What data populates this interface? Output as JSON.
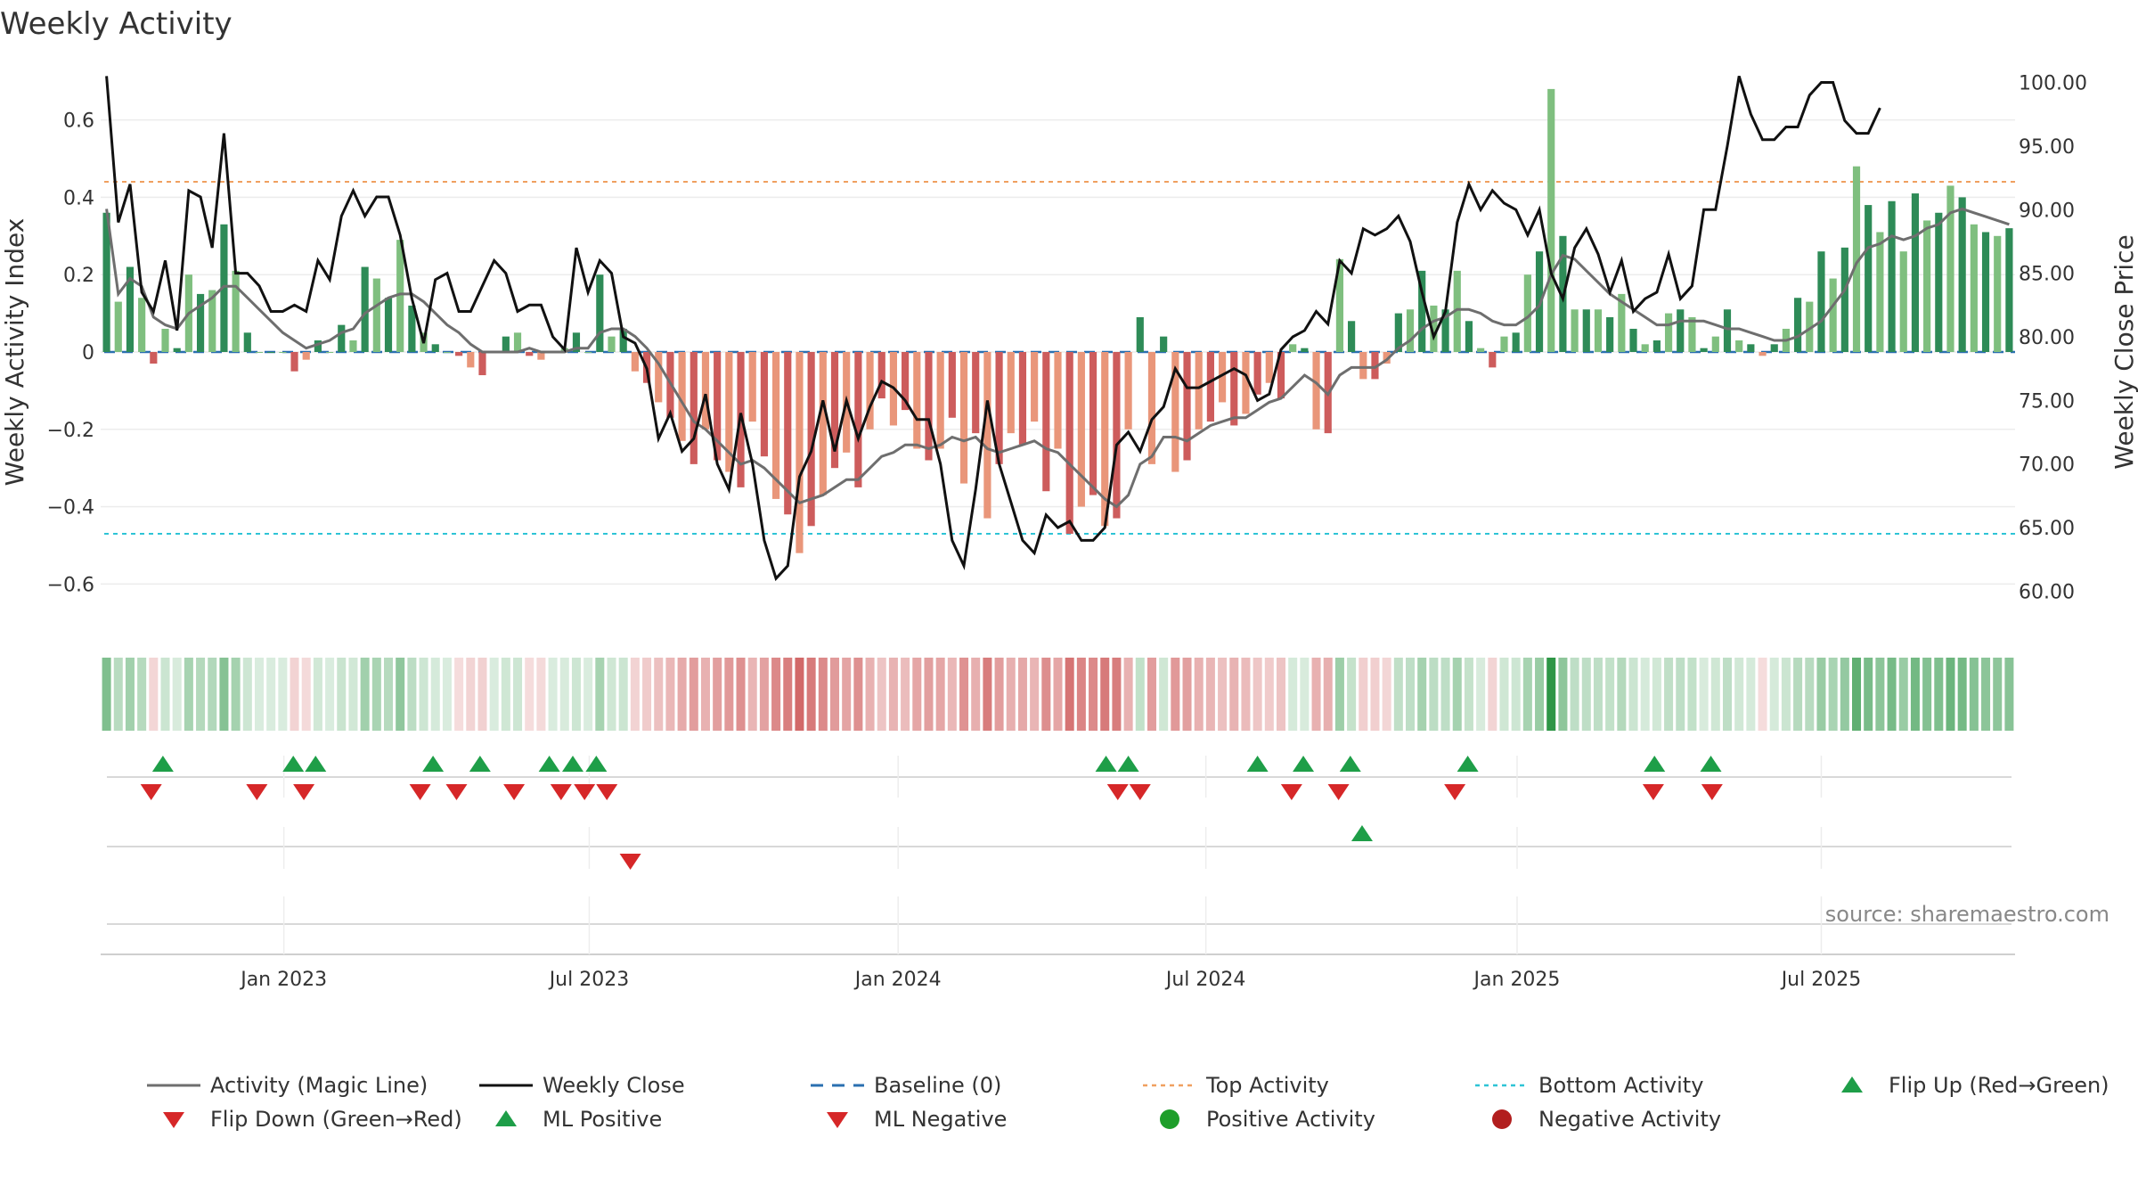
{
  "chart_data": {
    "type": "bar",
    "title": "Weekly Activity",
    "ylabel_left": "Weekly Activity Index",
    "ylabel_right": "Weekly Close Price",
    "source_text": "source: sharemaestro.com",
    "left_ylim": [
      -0.72,
      0.72
    ],
    "right_ylim": [
      58.0,
      102.0
    ],
    "left_ticks": [
      "0.6",
      "0.4",
      "0.2",
      "0",
      "−0.2",
      "−0.4",
      "−0.6"
    ],
    "left_tick_values": [
      0.6,
      0.4,
      0.2,
      0,
      -0.2,
      -0.4,
      -0.6
    ],
    "right_ticks": [
      "100.00",
      "95.00",
      "90.00",
      "85.00",
      "80.00",
      "75.00",
      "70.00",
      "65.00",
      "60.00"
    ],
    "right_tick_values": [
      100,
      95,
      90,
      85,
      80,
      75,
      70,
      65,
      60
    ],
    "x_ticks": [
      "Jan 2023",
      "Jul 2023",
      "Jan 2024",
      "Jul 2024",
      "Jan 2025",
      "Jul 2025"
    ],
    "x_tick_weeks": [
      15.1,
      41.1,
      67.4,
      93.6,
      120.1,
      146.0
    ],
    "top_activity": 0.44,
    "bottom_activity": -0.47,
    "activity": [
      0.36,
      0.13,
      0.22,
      0.14,
      -0.03,
      0.06,
      0.01,
      0.2,
      0.15,
      0.16,
      0.33,
      0.21,
      0.05,
      0.0,
      0.0,
      0.0,
      -0.05,
      -0.02,
      0.03,
      0.0,
      0.07,
      0.03,
      0.22,
      0.19,
      0.14,
      0.29,
      0.12,
      0.05,
      0.02,
      0.0,
      -0.01,
      -0.04,
      -0.06,
      0.0,
      0.04,
      0.05,
      -0.01,
      -0.02,
      0.0,
      0.01,
      0.05,
      0.0,
      0.2,
      0.04,
      0.06,
      -0.05,
      -0.08,
      -0.13,
      -0.17,
      -0.23,
      -0.29,
      -0.2,
      -0.28,
      -0.31,
      -0.35,
      -0.18,
      -0.27,
      -0.38,
      -0.42,
      -0.52,
      -0.45,
      -0.37,
      -0.3,
      -0.26,
      -0.35,
      -0.2,
      -0.12,
      -0.19,
      -0.15,
      -0.25,
      -0.28,
      -0.25,
      -0.17,
      -0.34,
      -0.21,
      -0.43,
      -0.29,
      -0.21,
      -0.24,
      -0.18,
      -0.36,
      -0.25,
      -0.47,
      -0.4,
      -0.37,
      -0.45,
      -0.43,
      -0.2,
      0.09,
      -0.29,
      0.04,
      -0.31,
      -0.28,
      -0.2,
      -0.18,
      -0.13,
      -0.19,
      -0.16,
      -0.11,
      -0.08,
      -0.12,
      0.02,
      0.01,
      -0.2,
      -0.21,
      0.24,
      0.08,
      -0.07,
      -0.07,
      -0.03,
      0.1,
      0.11,
      0.21,
      0.12,
      0.11,
      0.21,
      0.08,
      0.01,
      -0.04,
      0.04,
      0.05,
      0.2,
      0.26,
      0.68,
      0.3,
      0.11,
      0.11,
      0.11,
      0.09,
      0.15,
      0.06,
      0.02,
      0.03,
      0.1,
      0.11,
      0.09,
      0.01,
      0.04,
      0.11,
      0.03,
      0.02,
      -0.01,
      0.02,
      0.06,
      0.14,
      0.13,
      0.26,
      0.19,
      0.27,
      0.48,
      0.38,
      0.31,
      0.39,
      0.26,
      0.41,
      0.34,
      0.36,
      0.43,
      0.4,
      0.33,
      0.31,
      0.3,
      0.32
    ],
    "magic_line": [
      0.37,
      0.15,
      0.19,
      0.17,
      0.09,
      0.07,
      0.06,
      0.1,
      0.12,
      0.14,
      0.17,
      0.17,
      0.14,
      0.11,
      0.08,
      0.05,
      0.03,
      0.01,
      0.02,
      0.03,
      0.05,
      0.06,
      0.1,
      0.12,
      0.14,
      0.15,
      0.15,
      0.13,
      0.1,
      0.07,
      0.05,
      0.02,
      0.0,
      0.0,
      0.0,
      0.0,
      0.01,
      0.0,
      0.0,
      0.0,
      0.01,
      0.01,
      0.05,
      0.06,
      0.06,
      0.04,
      0.01,
      -0.03,
      -0.08,
      -0.13,
      -0.18,
      -0.2,
      -0.23,
      -0.26,
      -0.29,
      -0.28,
      -0.3,
      -0.33,
      -0.36,
      -0.39,
      -0.38,
      -0.37,
      -0.35,
      -0.33,
      -0.33,
      -0.3,
      -0.27,
      -0.26,
      -0.24,
      -0.24,
      -0.25,
      -0.24,
      -0.22,
      -0.23,
      -0.22,
      -0.25,
      -0.26,
      -0.25,
      -0.24,
      -0.23,
      -0.25,
      -0.26,
      -0.29,
      -0.32,
      -0.35,
      -0.38,
      -0.4,
      -0.37,
      -0.29,
      -0.27,
      -0.22,
      -0.22,
      -0.23,
      -0.21,
      -0.19,
      -0.18,
      -0.17,
      -0.17,
      -0.15,
      -0.13,
      -0.12,
      -0.09,
      -0.06,
      -0.08,
      -0.11,
      -0.06,
      -0.04,
      -0.04,
      -0.04,
      -0.02,
      0.01,
      0.03,
      0.06,
      0.08,
      0.09,
      0.11,
      0.11,
      0.1,
      0.08,
      0.07,
      0.07,
      0.09,
      0.12,
      0.2,
      0.25,
      0.24,
      0.21,
      0.18,
      0.15,
      0.13,
      0.11,
      0.09,
      0.07,
      0.07,
      0.08,
      0.08,
      0.08,
      0.07,
      0.06,
      0.06,
      0.05,
      0.04,
      0.03,
      0.03,
      0.04,
      0.06,
      0.08,
      0.12,
      0.16,
      0.23,
      0.27,
      0.28,
      0.3,
      0.29,
      0.3,
      0.32,
      0.33,
      0.36,
      0.37,
      0.36,
      0.35,
      0.34,
      0.33
    ],
    "weekly_close": [
      100.5,
      89,
      92,
      83.5,
      82,
      86,
      80.5,
      91.5,
      91,
      87,
      96,
      85,
      85,
      84,
      82,
      82,
      82.5,
      82,
      86,
      84.5,
      89.5,
      91.5,
      89.5,
      91,
      91,
      88,
      83,
      79.5,
      84.5,
      85,
      82,
      82,
      84,
      86,
      85,
      82,
      82.5,
      82.5,
      80,
      79,
      87,
      83.5,
      86,
      85,
      80,
      79.5,
      77.5,
      72,
      74,
      71,
      72,
      75.5,
      70,
      68,
      74,
      70,
      64,
      61,
      62,
      69,
      71,
      75,
      71,
      75,
      72,
      74.5,
      76.5,
      76,
      75,
      73.5,
      73.5,
      70,
      64,
      62,
      68,
      75,
      70,
      67,
      64,
      63,
      66,
      65,
      65.5,
      64,
      64,
      65,
      71.5,
      72.5,
      71,
      73.5,
      74.5,
      77.5,
      76,
      76,
      76.5,
      77,
      77.5,
      77,
      75,
      75.5,
      79,
      80,
      80.5,
      82,
      81,
      86,
      85,
      88.5,
      88,
      88.5,
      89.5,
      87.5,
      83.5,
      80,
      82,
      89,
      92,
      90,
      91.5,
      90.5,
      90,
      88,
      90,
      85,
      83,
      87,
      88.5,
      86.5,
      83.5,
      86,
      82,
      83,
      83.5,
      86.5,
      83,
      84,
      90,
      90,
      95,
      100.5,
      97.5,
      95.5,
      95.5,
      96.5,
      96.5,
      99,
      100,
      100,
      97,
      96,
      96,
      98
    ],
    "flip_up": [
      4.8,
      15.9,
      17.8,
      27.8,
      31.8,
      37.7,
      39.7,
      41.7,
      85.1,
      87,
      98,
      101.9,
      105.9,
      115.9,
      131.8,
      136.6
    ],
    "flip_down": [
      3.8,
      12.8,
      16.8,
      26.7,
      29.8,
      34.7,
      38.7,
      40.7,
      42.6,
      86.1,
      88,
      100.9,
      104.9,
      114.8,
      131.7,
      136.7
    ],
    "ml_positive": [
      106.9
    ],
    "ml_negative": [
      44.6
    ],
    "legend": [
      {
        "label": "Activity (Magic Line)",
        "kind": "line",
        "color": "#6e6e6e"
      },
      {
        "label": "Weekly Close",
        "kind": "line",
        "color": "#111111"
      },
      {
        "label": "Baseline (0)",
        "kind": "dash",
        "color": "#2a6fb0"
      },
      {
        "label": "Top Activity",
        "kind": "dot",
        "color": "#f0a060"
      },
      {
        "label": "Bottom Activity",
        "kind": "dot",
        "color": "#2ec4d6"
      },
      {
        "label": "Flip Up (Red→Green)",
        "kind": "tri-up",
        "color": "#1e9e48"
      },
      {
        "label": "Flip Down (Green→Red)",
        "kind": "tri-down",
        "color": "#d62728"
      },
      {
        "label": "ML Positive",
        "kind": "tri-up",
        "color": "#1e9e48"
      },
      {
        "label": "ML Negative",
        "kind": "tri-down",
        "color": "#d62728"
      },
      {
        "label": "Positive Activity",
        "kind": "circle",
        "color": "#1e9e2a"
      },
      {
        "label": "Negative Activity",
        "kind": "circle",
        "color": "#b21e1e"
      }
    ],
    "colors": {
      "pos_dark": "#2e8b57",
      "pos_light": "#7fbf7f",
      "neg_dark": "#cd5c5c",
      "neg_light": "#e9967a",
      "magic": "#6e6e6e",
      "close": "#111111",
      "baseline": "#2a6fb0",
      "top": "#f0a060",
      "bottom": "#2ec4d6",
      "up": "#1e9e48",
      "down": "#d62728"
    }
  }
}
